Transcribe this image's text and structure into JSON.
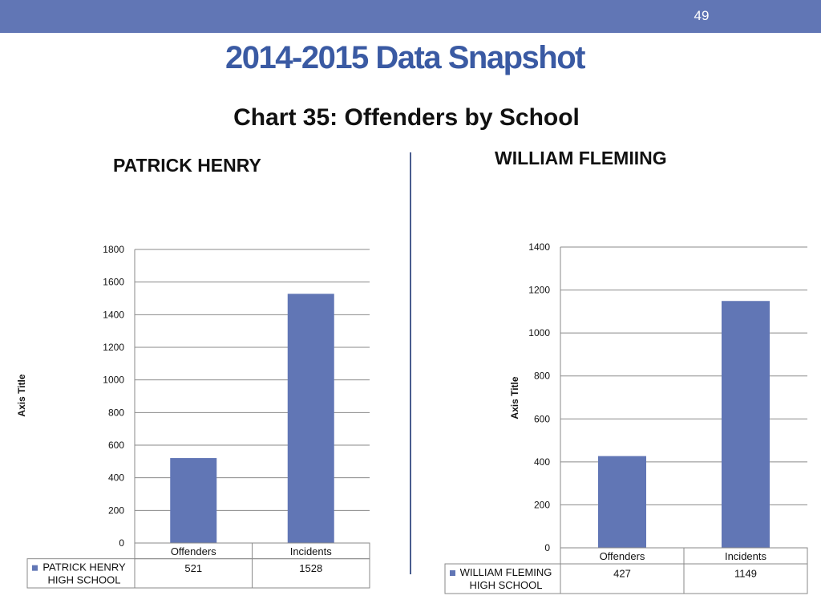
{
  "header": {
    "page_number": "49",
    "title": "2014-2015 Data Snapshot",
    "chart_heading": "Chart 35: Offenders by School"
  },
  "school_labels": {
    "left": "PATRICK HENRY",
    "right": "WILLIAM FLEMIING"
  },
  "colors": {
    "bar": "#6176b5",
    "header_bar": "#6176b5",
    "title": "#3a5aa3"
  },
  "chart_data": [
    {
      "type": "bar",
      "categories": [
        "Offenders",
        "Incidents"
      ],
      "series": [
        {
          "name": "PATRICK HENRY HIGH SCHOOL",
          "values": [
            521,
            1528
          ]
        }
      ],
      "ylabel": "Axis Title",
      "ylim": [
        0,
        1800
      ],
      "yticks": [
        0,
        200,
        400,
        600,
        800,
        1000,
        1200,
        1400,
        1600,
        1800
      ],
      "grid": true,
      "data_table": true
    },
    {
      "type": "bar",
      "categories": [
        "Offenders",
        "Incidents"
      ],
      "series": [
        {
          "name": "WILLIAM FLEMING HIGH SCHOOL",
          "values": [
            427,
            1149
          ]
        }
      ],
      "ylabel": "Axis Title",
      "ylim": [
        0,
        1400
      ],
      "yticks": [
        0,
        200,
        400,
        600,
        800,
        1000,
        1200,
        1400
      ],
      "grid": true,
      "data_table": true
    }
  ]
}
